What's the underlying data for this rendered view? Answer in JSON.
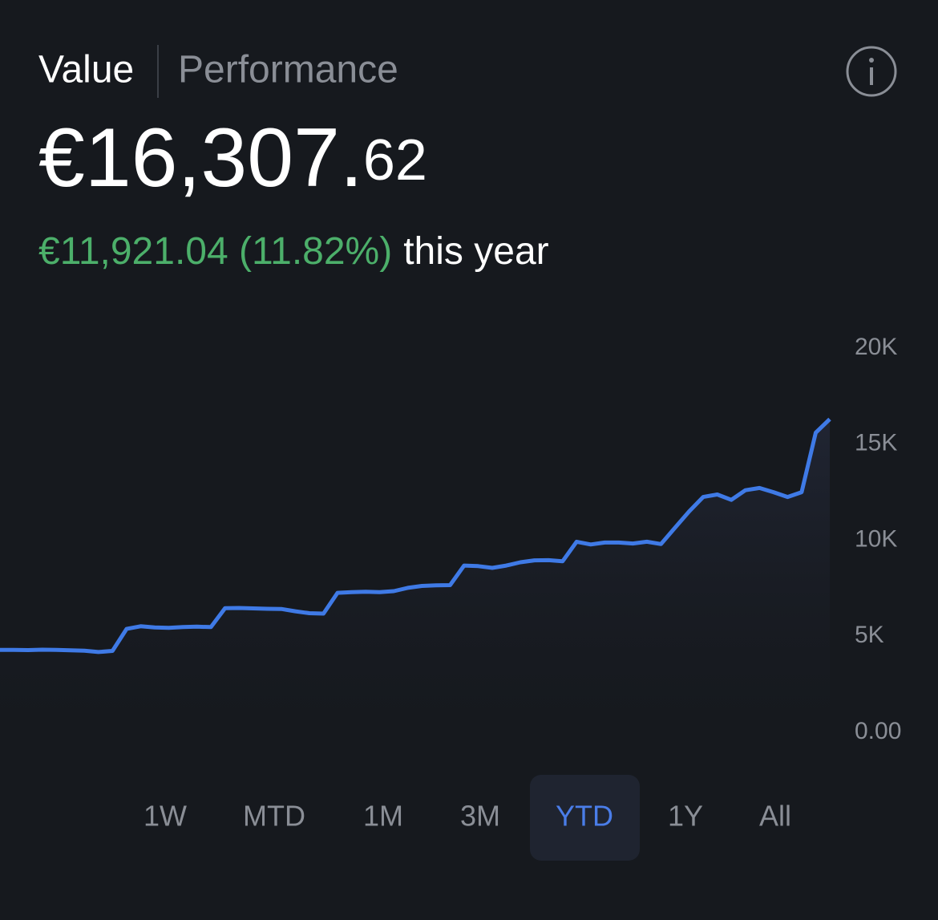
{
  "header": {
    "tabs": [
      "Value",
      "Performance"
    ],
    "active_tab": "Value"
  },
  "balance": {
    "whole": "€16,307.",
    "cents": "62"
  },
  "change": {
    "amount": "€11,921.04 (11.82%)",
    "period": "this year"
  },
  "chart_data": {
    "type": "line",
    "color": "#3f7ae6",
    "values": [
      4290,
      4290,
      4280,
      4300,
      4290,
      4270,
      4250,
      4180,
      4240,
      5380,
      5520,
      5460,
      5440,
      5480,
      5500,
      5480,
      6460,
      6470,
      6450,
      6430,
      6420,
      6300,
      6200,
      6180,
      7260,
      7300,
      7320,
      7300,
      7350,
      7520,
      7620,
      7650,
      7660,
      8680,
      8650,
      8560,
      8680,
      8850,
      8950,
      8960,
      8900,
      9920,
      9780,
      9880,
      9880,
      9830,
      9920,
      9800,
      10650,
      11500,
      12250,
      12380,
      12100,
      12600,
      12720,
      12500,
      12250,
      12500,
      15600,
      16300
    ],
    "ylim": [
      0,
      20000
    ],
    "yticks": [
      {
        "value": 0,
        "label": "0.00"
      },
      {
        "value": 5000,
        "label": "5K"
      },
      {
        "value": 10000,
        "label": "10K"
      },
      {
        "value": 15000,
        "label": "15K"
      },
      {
        "value": 20000,
        "label": "20K"
      }
    ]
  },
  "ranges": {
    "options": [
      "1W",
      "MTD",
      "1M",
      "3M",
      "YTD",
      "1Y",
      "All"
    ],
    "active": "YTD"
  }
}
